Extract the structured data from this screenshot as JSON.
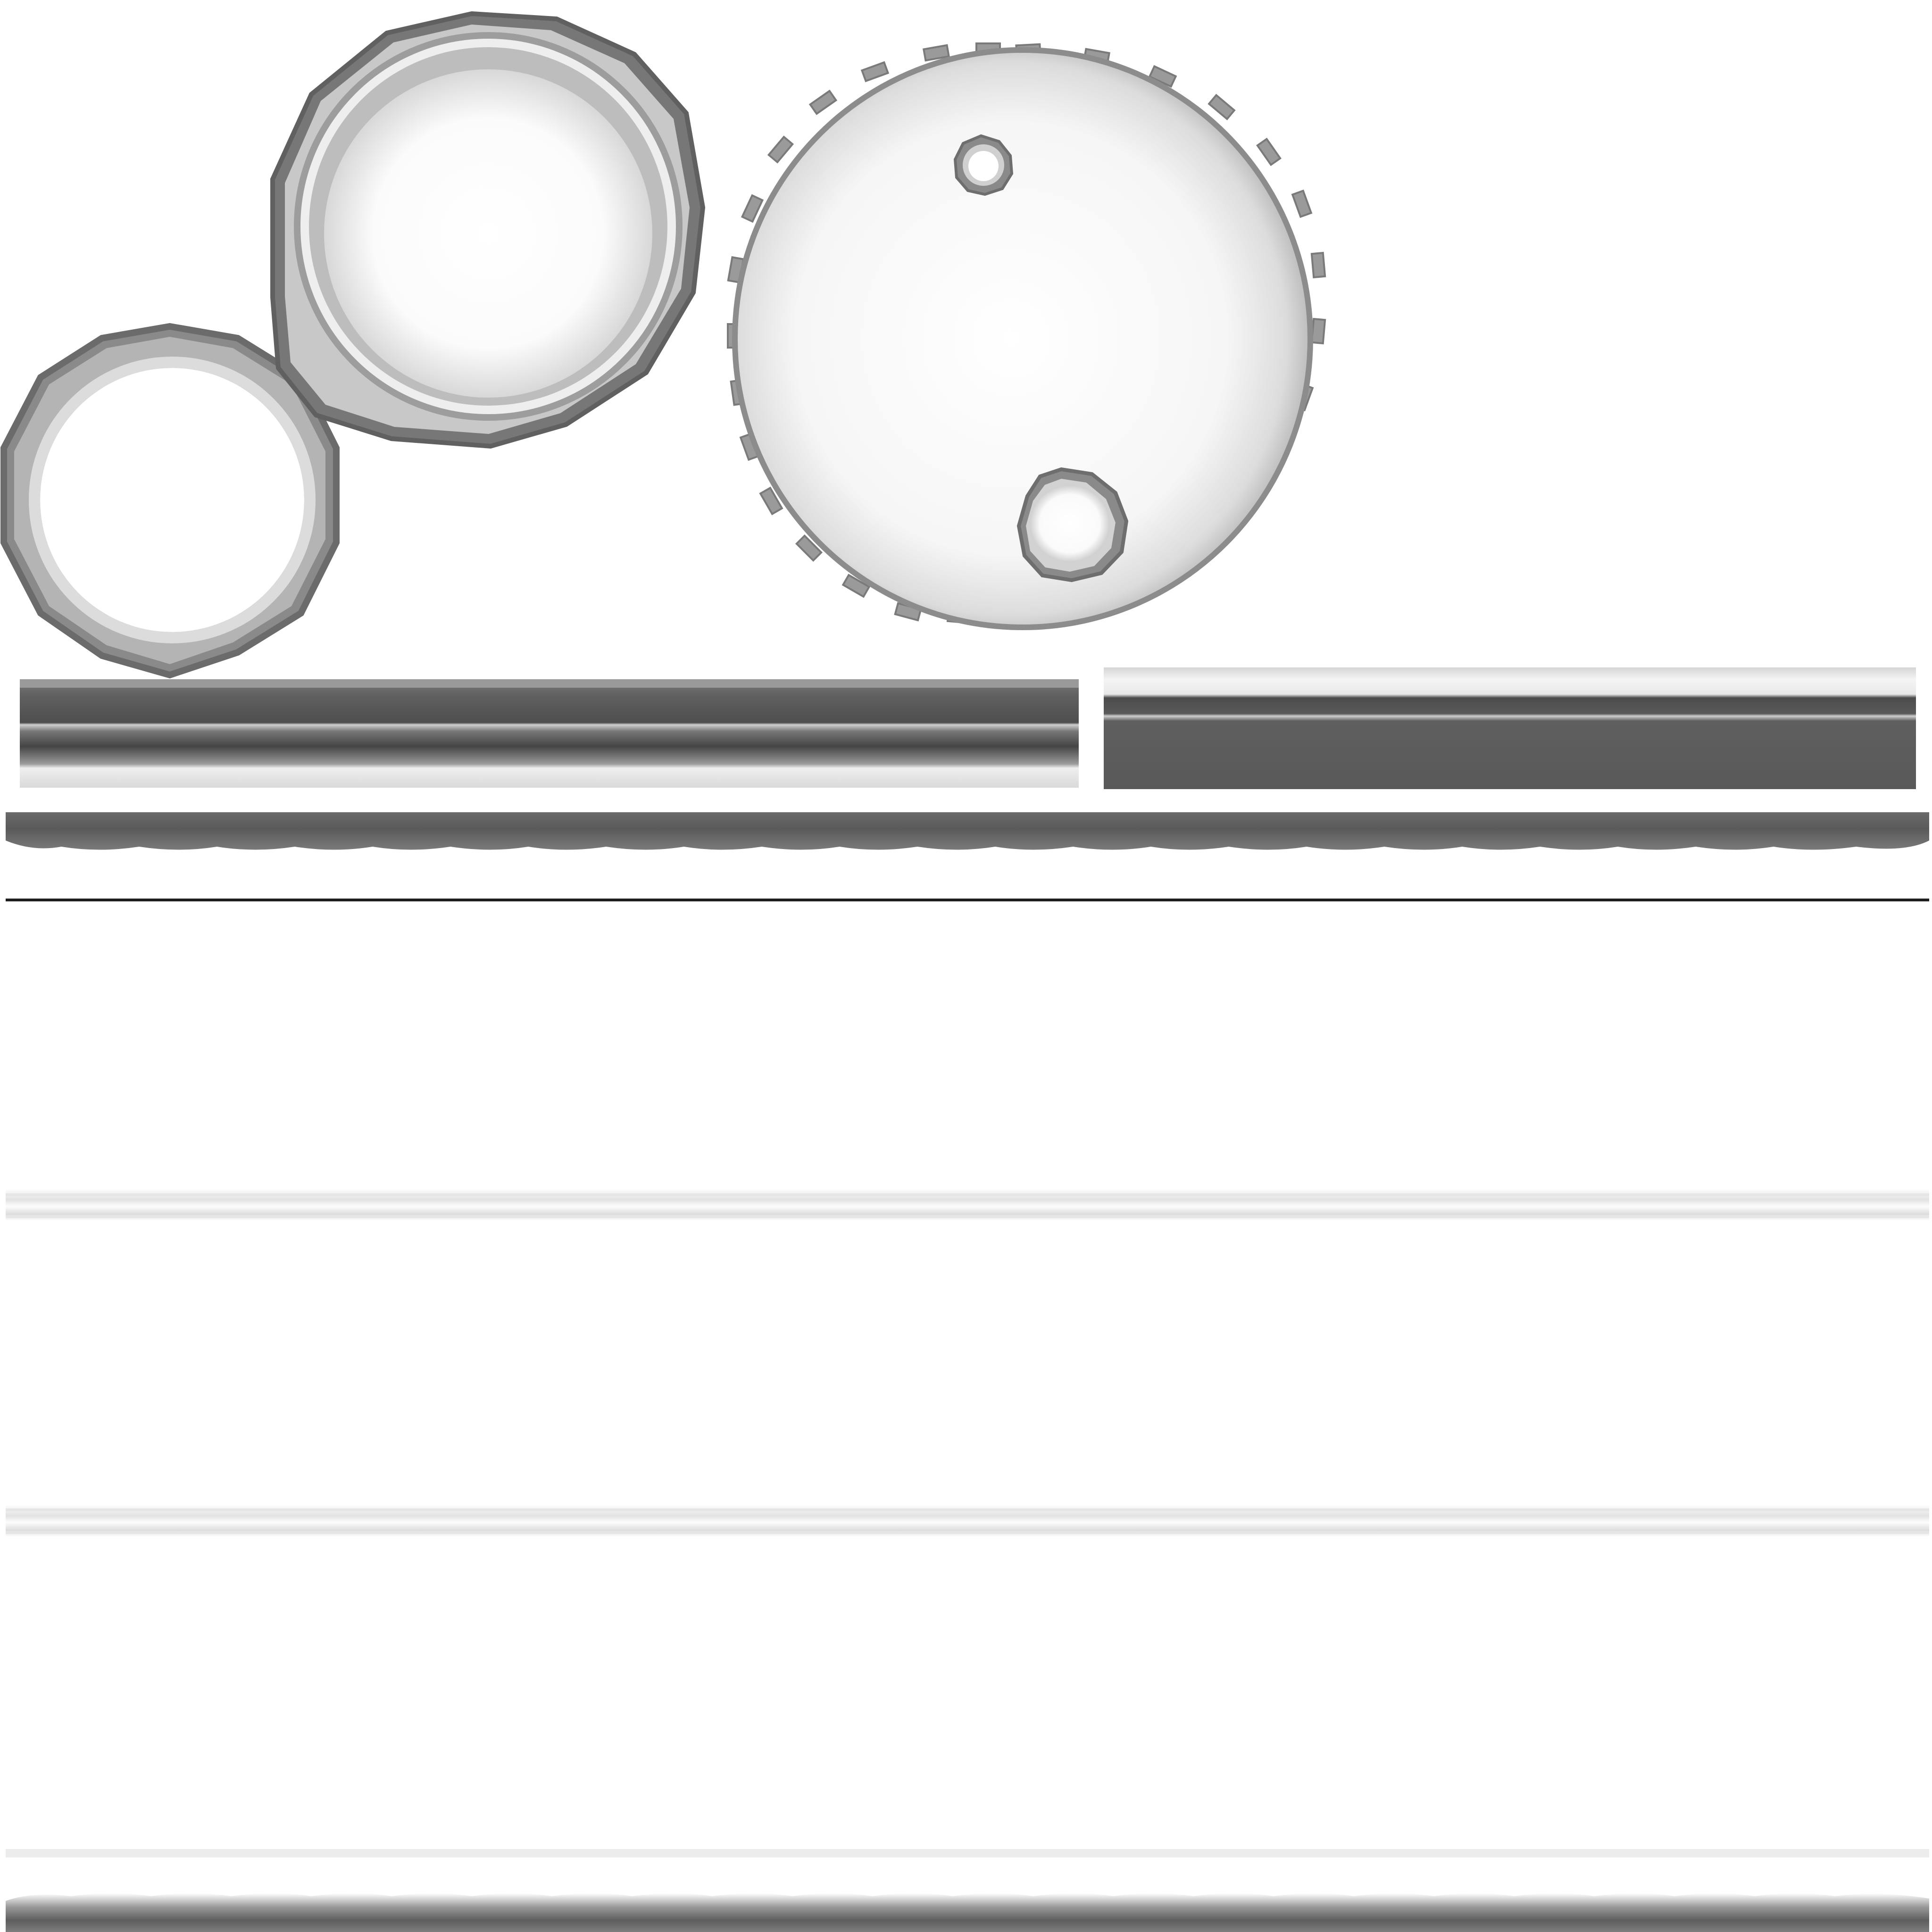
{
  "texture_atlas": {
    "background": "#ffffff",
    "tones": {
      "dark": "#555555",
      "mid": "#7a7a7a",
      "light": "#bdbdbd",
      "highlight": "#f2f2f2"
    },
    "islands": [
      {
        "name": "small-ring",
        "shape": "dodecagon-ring"
      },
      {
        "name": "cap-disc",
        "shape": "polygon-disc"
      },
      {
        "name": "drum-lid",
        "shape": "gear-disc",
        "features": [
          "small-bung-hole",
          "large-bung-hole"
        ]
      },
      {
        "name": "rim-strip-left",
        "shape": "strip"
      },
      {
        "name": "rim-strip-right",
        "shape": "strip"
      },
      {
        "name": "drum-body",
        "shape": "panel",
        "rib_count": 3
      }
    ]
  }
}
